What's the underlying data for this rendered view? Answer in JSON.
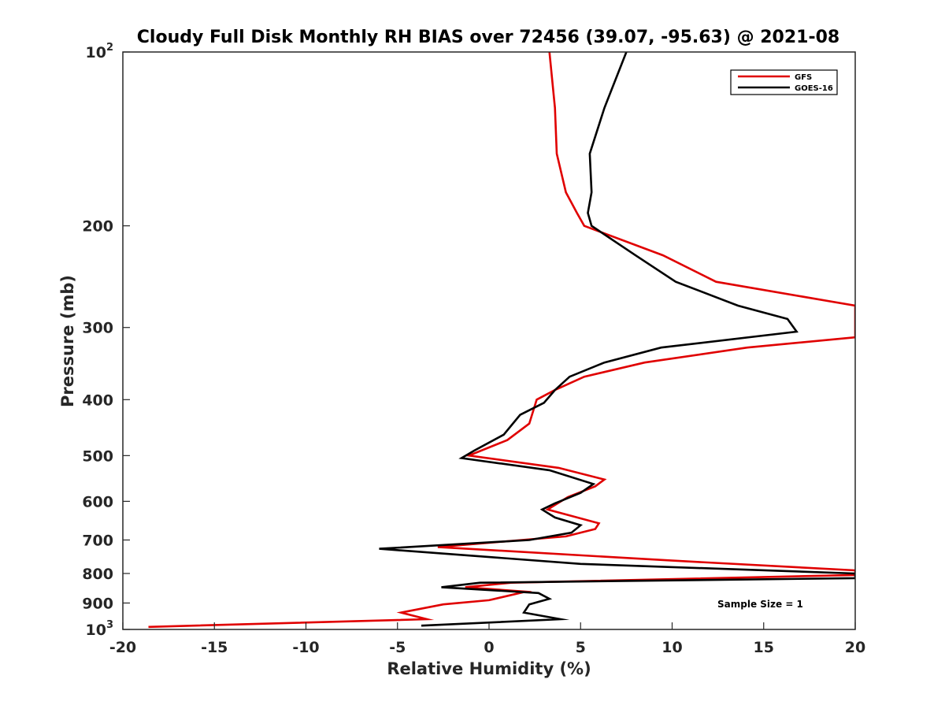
{
  "chart_data": {
    "type": "line",
    "title": "Cloudy Full Disk Monthly RH BIAS over 72456 (39.07, -95.63) @ 2021-08",
    "xlabel": "Relative Humidity (%)",
    "ylabel": "Pressure (mb)",
    "xlim": [
      -20,
      20
    ],
    "ylim": [
      100,
      1000
    ],
    "yscale": "log",
    "yaxis_reversed": true,
    "grid": false,
    "legend_position": "top-right",
    "annotation": "Sample Size = 1",
    "x_ticks": [
      {
        "value": -20,
        "label": "-20"
      },
      {
        "value": -15,
        "label": "-15"
      },
      {
        "value": -10,
        "label": "-10"
      },
      {
        "value": -5,
        "label": "-5"
      },
      {
        "value": 0,
        "label": "0"
      },
      {
        "value": 5,
        "label": "5"
      },
      {
        "value": 10,
        "label": "10"
      },
      {
        "value": 15,
        "label": "15"
      },
      {
        "value": 20,
        "label": "20"
      }
    ],
    "y_ticks": [
      {
        "value": 100,
        "label": "10",
        "exp": "2"
      },
      {
        "value": 200,
        "label": "200",
        "exp": ""
      },
      {
        "value": 300,
        "label": "300",
        "exp": ""
      },
      {
        "value": 400,
        "label": "400",
        "exp": ""
      },
      {
        "value": 500,
        "label": "500",
        "exp": ""
      },
      {
        "value": 600,
        "label": "600",
        "exp": ""
      },
      {
        "value": 700,
        "label": "700",
        "exp": ""
      },
      {
        "value": 800,
        "label": "800",
        "exp": ""
      },
      {
        "value": 900,
        "label": "900",
        "exp": ""
      },
      {
        "value": 1000,
        "label": "10",
        "exp": "3"
      }
    ],
    "series": [
      {
        "name": "GFS",
        "color": "#e00000",
        "points": [
          {
            "x": 3.3,
            "y": 100
          },
          {
            "x": 3.6,
            "y": 125
          },
          {
            "x": 3.7,
            "y": 150
          },
          {
            "x": 4.2,
            "y": 175
          },
          {
            "x": 4.8,
            "y": 190
          },
          {
            "x": 5.2,
            "y": 200
          },
          {
            "x": 9.5,
            "y": 225
          },
          {
            "x": 12.4,
            "y": 250
          },
          {
            "x": 20.0,
            "y": 275
          },
          {
            "x": 20.0,
            "y": 312
          },
          {
            "x": 14.1,
            "y": 325
          },
          {
            "x": 8.5,
            "y": 345
          },
          {
            "x": 5.2,
            "y": 365
          },
          {
            "x": 3.6,
            "y": 385
          },
          {
            "x": 2.6,
            "y": 400
          },
          {
            "x": 2.2,
            "y": 440
          },
          {
            "x": 1.0,
            "y": 470
          },
          {
            "x": -1.1,
            "y": 500
          },
          {
            "x": 3.8,
            "y": 525
          },
          {
            "x": 6.3,
            "y": 550
          },
          {
            "x": 5.8,
            "y": 565
          },
          {
            "x": 4.3,
            "y": 590
          },
          {
            "x": 3.2,
            "y": 620
          },
          {
            "x": 6.0,
            "y": 655
          },
          {
            "x": 5.8,
            "y": 670
          },
          {
            "x": 4.2,
            "y": 690
          },
          {
            "x": -2.8,
            "y": 720
          },
          {
            "x": 10.0,
            "y": 760
          },
          {
            "x": 20.0,
            "y": 790
          },
          {
            "x": 20.0,
            "y": 805
          },
          {
            "x": 1.2,
            "y": 830
          },
          {
            "x": -1.3,
            "y": 845
          },
          {
            "x": 2.0,
            "y": 860
          },
          {
            "x": 0.0,
            "y": 890
          },
          {
            "x": -2.5,
            "y": 905
          },
          {
            "x": -4.8,
            "y": 935
          },
          {
            "x": -3.4,
            "y": 960
          },
          {
            "x": -18.6,
            "y": 990
          }
        ]
      },
      {
        "name": "GOES-16",
        "color": "#000000",
        "points": [
          {
            "x": 7.5,
            "y": 100
          },
          {
            "x": 6.3,
            "y": 125
          },
          {
            "x": 5.5,
            "y": 150
          },
          {
            "x": 5.6,
            "y": 175
          },
          {
            "x": 5.4,
            "y": 190
          },
          {
            "x": 5.6,
            "y": 200
          },
          {
            "x": 8.0,
            "y": 225
          },
          {
            "x": 10.2,
            "y": 250
          },
          {
            "x": 13.6,
            "y": 275
          },
          {
            "x": 16.3,
            "y": 290
          },
          {
            "x": 16.8,
            "y": 305
          },
          {
            "x": 9.4,
            "y": 325
          },
          {
            "x": 6.3,
            "y": 345
          },
          {
            "x": 4.4,
            "y": 365
          },
          {
            "x": 3.6,
            "y": 385
          },
          {
            "x": 3.0,
            "y": 405
          },
          {
            "x": 1.7,
            "y": 425
          },
          {
            "x": 0.8,
            "y": 460
          },
          {
            "x": -0.8,
            "y": 490
          },
          {
            "x": -1.5,
            "y": 505
          },
          {
            "x": 3.3,
            "y": 530
          },
          {
            "x": 5.7,
            "y": 560
          },
          {
            "x": 5.0,
            "y": 580
          },
          {
            "x": 3.6,
            "y": 605
          },
          {
            "x": 2.9,
            "y": 620
          },
          {
            "x": 3.6,
            "y": 640
          },
          {
            "x": 5.0,
            "y": 660
          },
          {
            "x": 4.5,
            "y": 680
          },
          {
            "x": 2.2,
            "y": 700
          },
          {
            "x": -6.0,
            "y": 725
          },
          {
            "x": 5.0,
            "y": 770
          },
          {
            "x": 20.0,
            "y": 800
          },
          {
            "x": 20.0,
            "y": 815
          },
          {
            "x": -0.5,
            "y": 830
          },
          {
            "x": -2.6,
            "y": 845
          },
          {
            "x": 2.7,
            "y": 865
          },
          {
            "x": 3.3,
            "y": 885
          },
          {
            "x": 2.2,
            "y": 905
          },
          {
            "x": 1.9,
            "y": 935
          },
          {
            "x": 3.9,
            "y": 960
          },
          {
            "x": -3.7,
            "y": 985
          }
        ]
      }
    ]
  }
}
